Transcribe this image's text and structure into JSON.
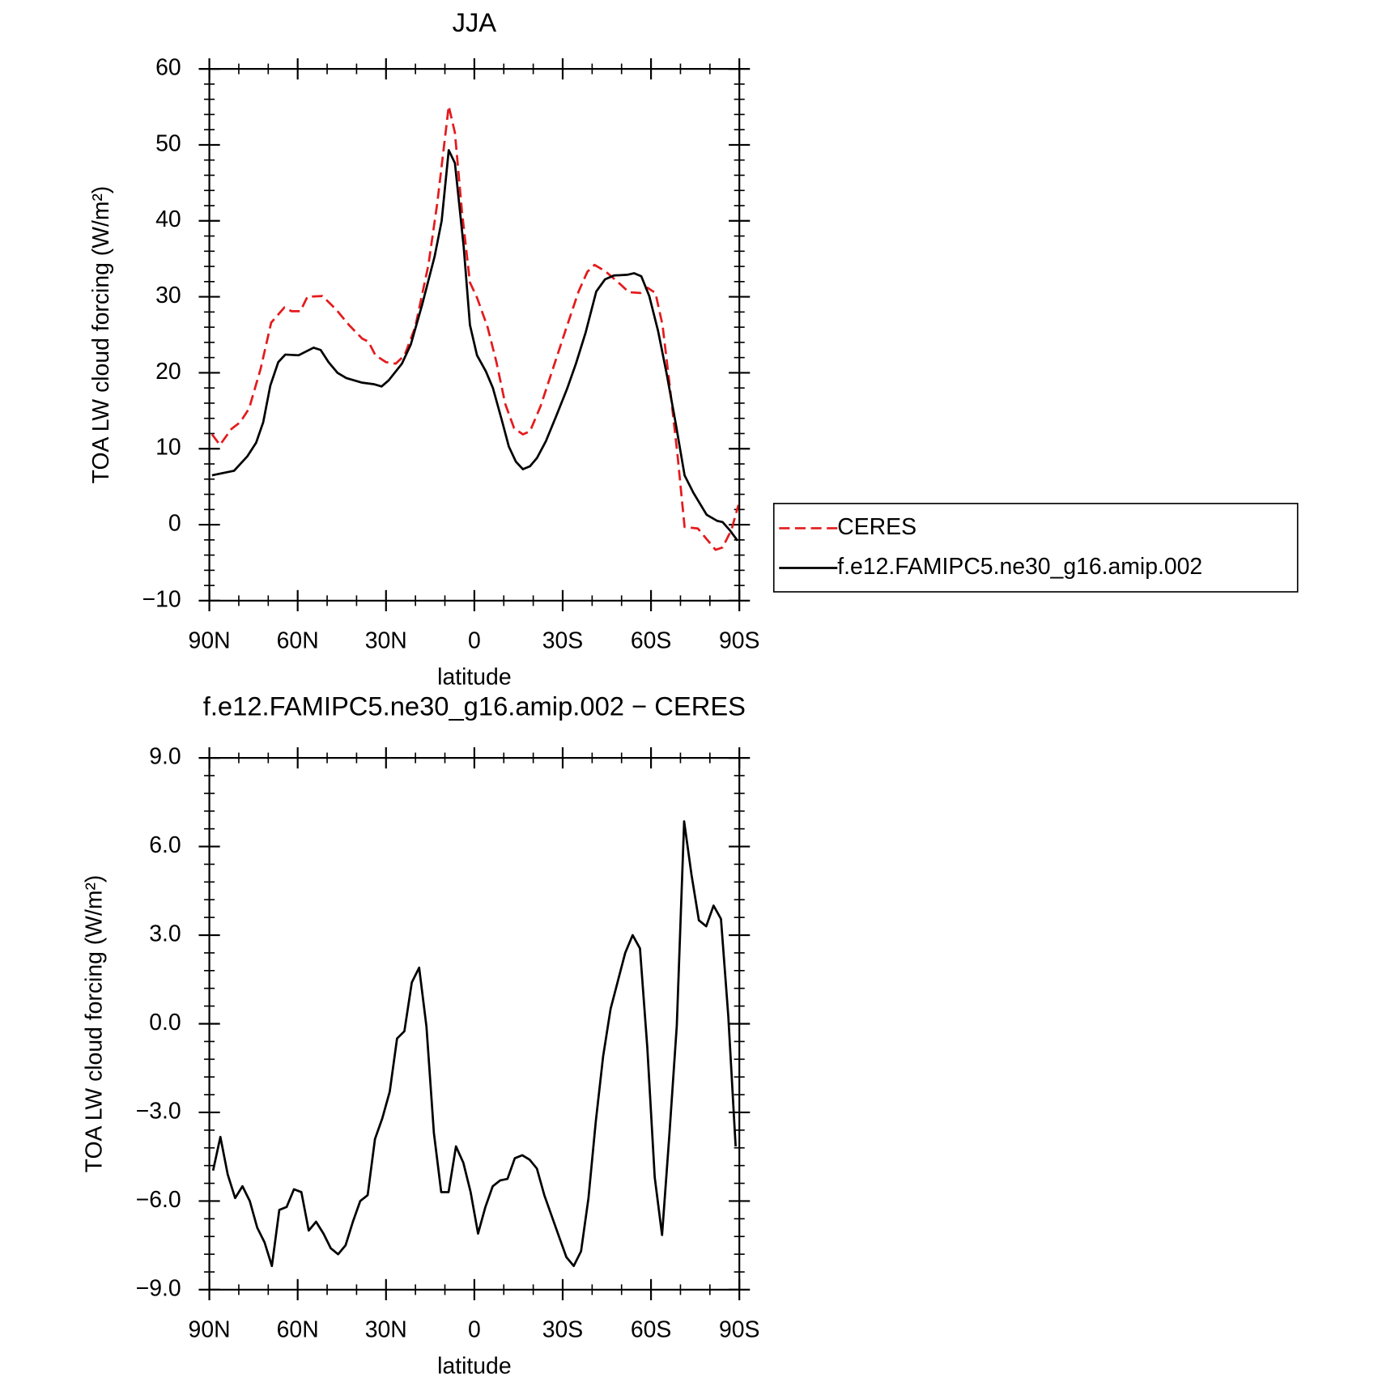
{
  "chart_data": [
    {
      "type": "line",
      "title": "JJA",
      "x_label": "latitude",
      "y_label": "TOA LW cloud forcing (W/m²)",
      "xlim": [
        90,
        -90
      ],
      "xticks": [
        {
          "value": 90,
          "label": "90N"
        },
        {
          "value": 60,
          "label": "60N"
        },
        {
          "value": 30,
          "label": "30N"
        },
        0,
        {
          "value": -30,
          "label": "30S"
        },
        {
          "value": -60,
          "label": "60S"
        },
        {
          "value": -90,
          "label": "90S"
        }
      ],
      "ylim": [
        -10,
        60
      ],
      "yticks": [
        {
          "value": -10,
          "label": "−10"
        },
        0,
        10,
        20,
        30,
        40,
        50,
        60
      ],
      "legend": "outside-right",
      "series": [
        {
          "name": "CERES",
          "color": "#e41a1c",
          "dash": true,
          "x": [
            89.1,
            86.4,
            82.5,
            79.5,
            76.5,
            72.6,
            69,
            64.5,
            62.1,
            59.1,
            56.7,
            51.6,
            47.1,
            42.6,
            38.1,
            36,
            33.6,
            30,
            26.7,
            23.7,
            20.1,
            15.6,
            12.6,
            8.7,
            6.6,
            4.2,
            1.5,
            -0.9,
            -4.5,
            -7.5,
            -10.5,
            -13.5,
            -16.5,
            -18.9,
            -22.5,
            -26.4,
            -30.9,
            -35.4,
            -38.4,
            -40.8,
            -44.4,
            -48.9,
            -52.5,
            -56.4,
            -58.8,
            -61.5,
            -63.9,
            -66.3,
            -69,
            -71.4,
            -75.9,
            -78.9,
            -81.9,
            -84.3,
            -87.3,
            -89.7
          ],
          "values": [
            11.9,
            10.5,
            12.6,
            13.5,
            15.3,
            20.5,
            26.6,
            28.6,
            28.1,
            28.1,
            30,
            30.1,
            28.4,
            26.3,
            24.5,
            24.1,
            22.3,
            21.4,
            21.2,
            22.3,
            26,
            34.2,
            42.3,
            55.1,
            51.6,
            41.2,
            31.9,
            29.9,
            26,
            21.4,
            15.9,
            12.7,
            11.9,
            12.3,
            15.6,
            20.2,
            25.5,
            30.7,
            33.3,
            34.2,
            33.4,
            31.9,
            30.6,
            30.5,
            31.2,
            30.5,
            26.3,
            18.5,
            9.2,
            -0.3,
            -0.5,
            -1.9,
            -3.3,
            -3.0,
            -0.7,
            2.6
          ]
        },
        {
          "name": "f.e12.FAMIPC5.ne30_g16.amip.002",
          "color": "#000000",
          "dash": false,
          "x": [
            89.1,
            81.6,
            77.1,
            74.1,
            71.7,
            69.3,
            66.6,
            64.2,
            59.7,
            54.6,
            52.2,
            49.5,
            46.5,
            43.5,
            38.1,
            34.2,
            31.5,
            29.1,
            24.6,
            21.6,
            17.7,
            13.5,
            11.1,
            8.7,
            6.6,
            3.6,
            1.5,
            -0.9,
            -3.9,
            -6.3,
            -9.3,
            -11.7,
            -14.1,
            -16.5,
            -18.9,
            -21.3,
            -24.3,
            -27.9,
            -31.5,
            -34.5,
            -37.8,
            -41.4,
            -44.4,
            -47.4,
            -51.9,
            -54.3,
            -56.7,
            -59.4,
            -62.4,
            -65.4,
            -68.4,
            -71.4,
            -74.4,
            -78.9,
            -82.5,
            -84.3,
            -86.7,
            -89.4
          ],
          "values": [
            6.5,
            7.1,
            9,
            10.8,
            13.5,
            18.3,
            21.4,
            22.4,
            22.3,
            23.3,
            23,
            21.4,
            20,
            19.3,
            18.7,
            18.5,
            18.2,
            19,
            21.2,
            23.7,
            29,
            35.3,
            40,
            49.3,
            47.6,
            36.5,
            26.3,
            22.3,
            20.2,
            18,
            13.8,
            10.3,
            8.3,
            7.3,
            7.7,
            8.8,
            11,
            14.4,
            17.9,
            21.2,
            25.3,
            30.7,
            32.3,
            32.8,
            32.9,
            33.1,
            32.7,
            30.1,
            25.5,
            19.7,
            13.3,
            6.5,
            4.2,
            1.3,
            0.5,
            0.35,
            -0.7,
            -2.1
          ]
        }
      ]
    },
    {
      "type": "line",
      "title": "f.e12.FAMIPC5.ne30_g16.amip.002 − CERES",
      "x_label": "latitude",
      "y_label": "TOA LW cloud forcing (W/m²)",
      "xlim": [
        90,
        -90
      ],
      "xticks": [
        {
          "value": 90,
          "label": "90N"
        },
        {
          "value": 60,
          "label": "60N"
        },
        {
          "value": 30,
          "label": "30N"
        },
        0,
        {
          "value": -30,
          "label": "30S"
        },
        {
          "value": -60,
          "label": "60S"
        },
        {
          "value": -90,
          "label": "90S"
        }
      ],
      "ylim": [
        -9,
        9
      ],
      "yticks": [
        {
          "value": -9,
          "label": "−9.0"
        },
        {
          "value": -6,
          "label": "−6.0"
        },
        {
          "value": -3,
          "label": "−3.0"
        },
        {
          "value": 0,
          "label": "0.0"
        },
        {
          "value": 3,
          "label": "3.0"
        },
        {
          "value": 6,
          "label": "6.0"
        },
        {
          "value": 9,
          "label": "9.0"
        }
      ],
      "series": [
        {
          "color": "#000000",
          "dash": false,
          "x": [
            88.75,
            86.25,
            83.75,
            81.25,
            78.75,
            76.25,
            73.75,
            71.25,
            68.75,
            66.25,
            63.75,
            61.25,
            58.75,
            56.25,
            53.75,
            51.25,
            48.75,
            46.25,
            43.75,
            41.25,
            38.75,
            36.25,
            33.75,
            31.25,
            28.75,
            26.25,
            23.75,
            21.25,
            18.75,
            16.25,
            13.75,
            11.25,
            8.75,
            6.25,
            3.75,
            1.25,
            -1.25,
            -3.75,
            -6.25,
            -8.75,
            -11.25,
            -13.75,
            -16.25,
            -18.75,
            -21.25,
            -23.75,
            -26.25,
            -28.75,
            -31.25,
            -33.75,
            -36.25,
            -38.75,
            -41.25,
            -43.75,
            -46.25,
            -48.75,
            -51.25,
            -53.75,
            -56.25,
            -58.75,
            -61.25,
            -63.75,
            -66.25,
            -68.75,
            -71.25,
            -73.75,
            -76.25,
            -78.75,
            -81.25,
            -83.75,
            -86.25,
            -88.75
          ],
          "values": [
            -4.97,
            -3.83,
            -5.1,
            -5.9,
            -5.5,
            -6.0,
            -6.9,
            -7.4,
            -8.2,
            -6.3,
            -6.2,
            -5.6,
            -5.7,
            -7.0,
            -6.7,
            -7.1,
            -7.6,
            -7.8,
            -7.5,
            -6.7,
            -6.0,
            -5.8,
            -3.9,
            -3.2,
            -2.3,
            -0.5,
            -0.25,
            1.4,
            1.9,
            -0.1,
            -3.7,
            -5.7,
            -5.7,
            -4.15,
            -4.7,
            -5.7,
            -7.1,
            -6.2,
            -5.5,
            -5.3,
            -5.25,
            -4.55,
            -4.45,
            -4.6,
            -4.9,
            -5.8,
            -6.5,
            -7.2,
            -7.9,
            -8.2,
            -7.7,
            -5.9,
            -3.3,
            -1.1,
            0.5,
            1.45,
            2.4,
            3.0,
            2.55,
            -0.8,
            -5.2,
            -7.15,
            -3.75,
            -0.05,
            6.85,
            5.05,
            3.5,
            3.3,
            4.0,
            3.55,
            0.25,
            -4.15
          ]
        }
      ]
    }
  ]
}
